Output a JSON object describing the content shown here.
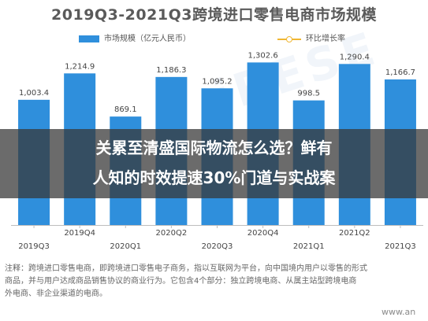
{
  "chart_data": {
    "type": "bar",
    "title": "2019Q3-2021Q3跨境进口零售电商市场规模",
    "categories": [
      "2019Q3",
      "2019Q4",
      "2020Q1",
      "2020Q2",
      "2020Q3",
      "2020Q4",
      "2021Q1",
      "2021Q2",
      "2021Q3"
    ],
    "series": [
      {
        "name": "市场规模（亿元人民币）",
        "type": "bar",
        "values": [
          1003.4,
          1214.9,
          869.1,
          1186.3,
          1095.2,
          1302.6,
          998.5,
          1290.4,
          1166.7
        ]
      },
      {
        "name": "环比增长率",
        "type": "line"
      }
    ],
    "ylim": [
      0,
      1450
    ],
    "bar_labels": [
      "1,003.4",
      "1,214.9",
      "869.1",
      "1,186.3",
      "1,095.2",
      "1,302.6",
      "998.5",
      "1,290.4",
      "1,166.7"
    ],
    "colors": {
      "bar": "#2f8fdc",
      "line": "#f0b733"
    }
  },
  "banner": {
    "line1": "关累至清盛国际物流怎么选？鲜有",
    "line2": "人知的时效提速30%门道与实战案"
  },
  "notes": [
    "注释：跨境进口零售电商，即跨境进口零售电子商务，指以互联网为平台，向中国境内用户以零售的形式",
    "商品，并与用户达成商品销售协议的商业行为。它包含4个部分：独立跨境电商、从属主站型跨境电商",
    "外电商、非企业渠道的电商。"
  ],
  "watermark": "www.an"
}
